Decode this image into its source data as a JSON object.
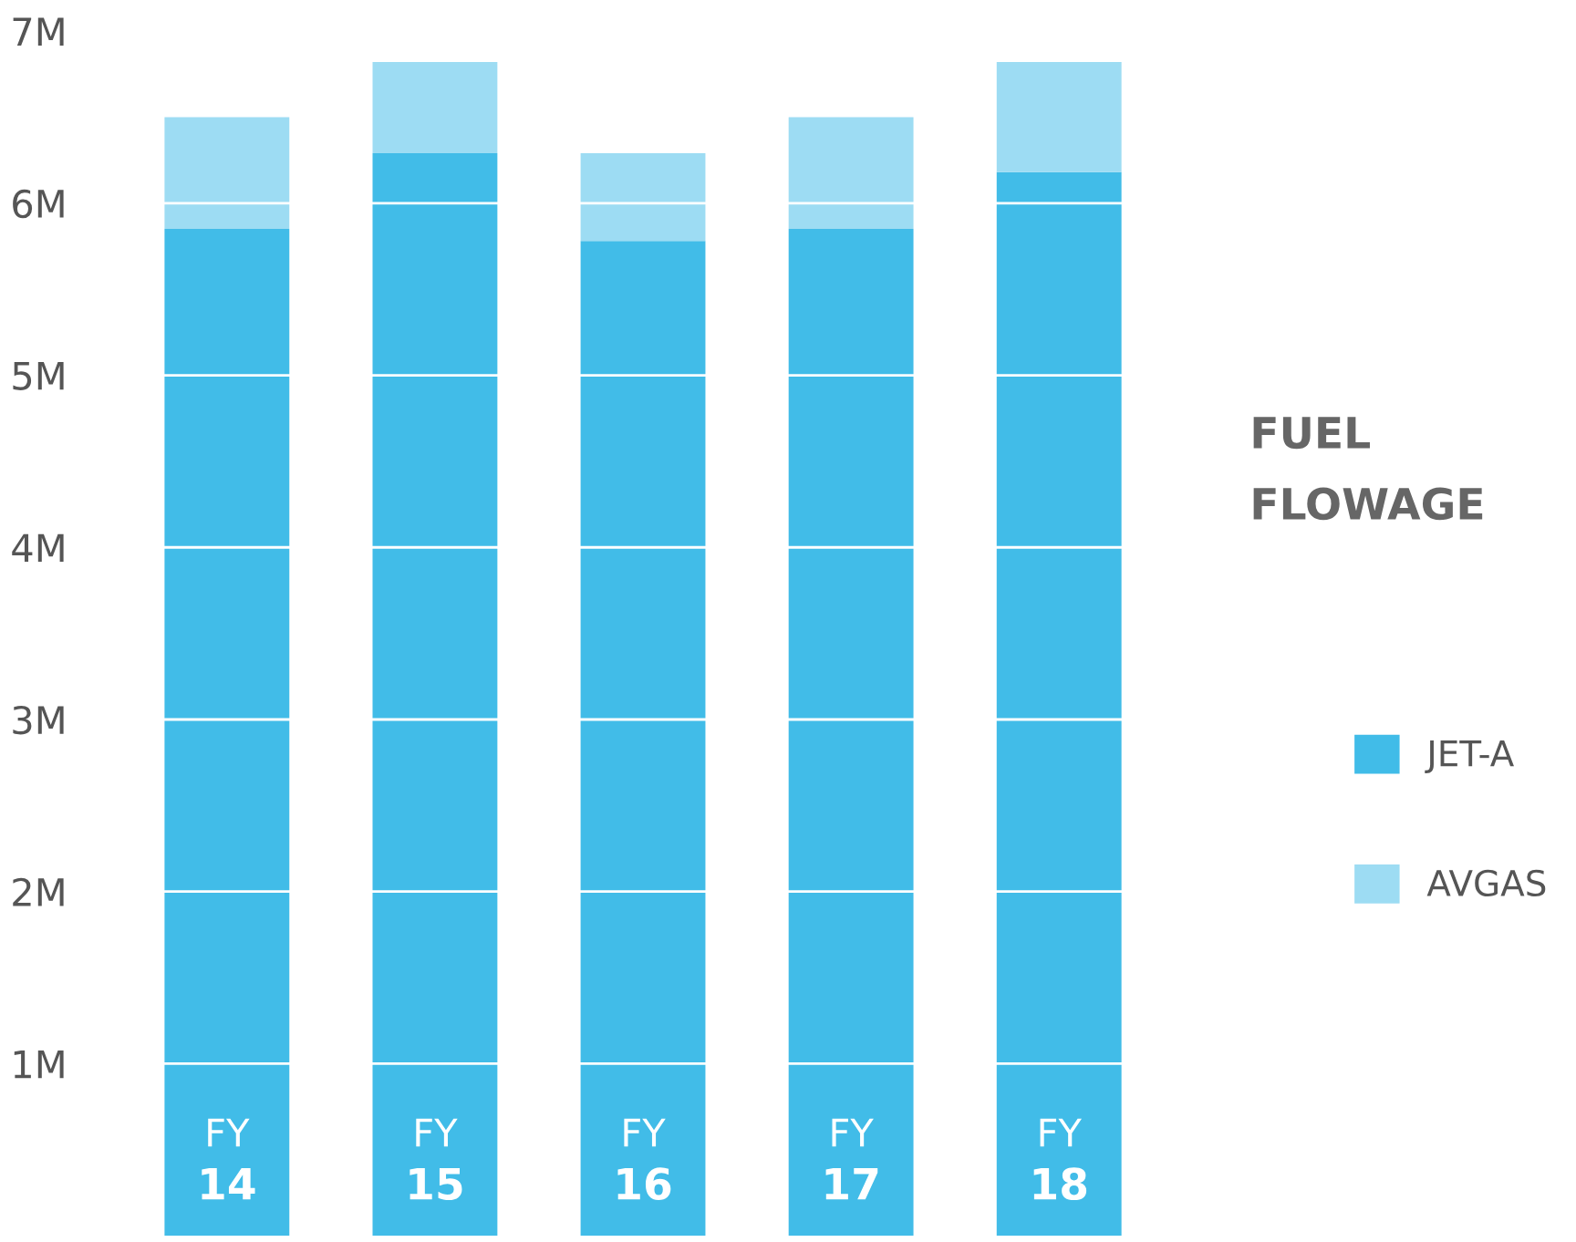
{
  "chart_data": {
    "type": "bar",
    "title": "FUEL FLOWAGE",
    "stacked": true,
    "categories": [
      "FY\n14",
      "FY\n15",
      "FY\n16",
      "FY\n17",
      "FY\n18"
    ],
    "series": [
      {
        "name": "JET-A",
        "color": "#41bce8",
        "values": [
          5.85,
          6.29,
          5.78,
          5.85,
          6.18
        ]
      },
      {
        "name": "AVGAS",
        "color": "#9ddcf3",
        "values": [
          0.65,
          0.53,
          0.51,
          0.65,
          0.64
        ]
      }
    ],
    "ylim": [
      0,
      7
    ],
    "yticks": [
      {
        "value": 1,
        "label": "1M"
      },
      {
        "value": 2,
        "label": "2M"
      },
      {
        "value": 3,
        "label": "3M"
      },
      {
        "value": 4,
        "label": "4M"
      },
      {
        "value": 5,
        "label": "5M"
      },
      {
        "value": 6,
        "label": "6M"
      },
      {
        "value": 7,
        "label": "7M"
      }
    ],
    "grid": "y",
    "legend": "right"
  }
}
